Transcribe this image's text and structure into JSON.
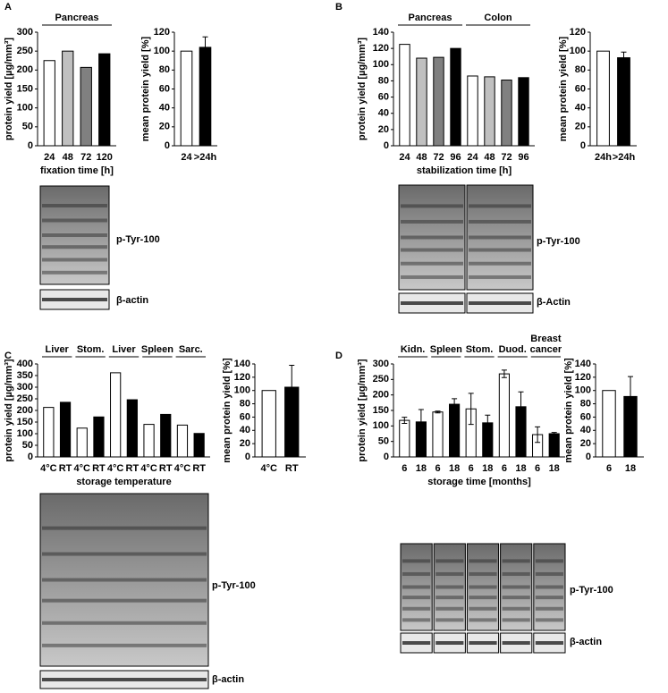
{
  "panels": [
    {
      "letter": "A",
      "blot_labels": [
        "p-Tyr-100",
        "β-actin"
      ]
    },
    {
      "letter": "B",
      "blot_labels": [
        "p-Tyr-100",
        "β-Actin"
      ]
    },
    {
      "letter": "C",
      "blot_labels": [
        "p-Tyr-100",
        "β-actin"
      ]
    },
    {
      "letter": "D",
      "blot_labels": [
        "p-Tyr-100",
        "β-actin"
      ]
    }
  ],
  "chart_data": [
    {
      "type": "bar",
      "ylabel": "protein yield [µg/mm³]",
      "xlabel": "fixation time [h]",
      "bar_colors": [
        "#ffffff",
        "#c0c0c0",
        "#808080",
        "#000000"
      ],
      "groups": [
        {
          "label": "Pancreas",
          "categories": [
            "24",
            "48",
            "72",
            "120"
          ],
          "values": [
            225,
            250,
            207,
            243
          ]
        }
      ],
      "ylim": [
        0,
        300
      ],
      "yticks": [
        0,
        50,
        100,
        150,
        200,
        250,
        300
      ]
    },
    {
      "type": "bar",
      "ylabel": "mean protein yield [%]",
      "bar_colors": [
        "#ffffff",
        "#000000"
      ],
      "groups": [
        {
          "categories": [
            "24",
            ">24h"
          ],
          "values": [
            100,
            104
          ],
          "errors": [
            null,
            11
          ]
        }
      ],
      "ylim": [
        0,
        120
      ],
      "yticks": [
        0,
        20,
        40,
        60,
        80,
        100,
        120
      ]
    },
    {
      "type": "bar",
      "ylabel": "protein yield [µg/mm³]",
      "xlabel": "stabilization time [h]",
      "bar_colors": [
        "#ffffff",
        "#c0c0c0",
        "#808080",
        "#000000"
      ],
      "groups": [
        {
          "label": "Pancreas",
          "categories": [
            "24",
            "48",
            "72",
            "96"
          ],
          "values": [
            125,
            108,
            109,
            120
          ]
        },
        {
          "label": "Colon",
          "categories": [
            "24",
            "48",
            "72",
            "96"
          ],
          "values": [
            86,
            85,
            81,
            84
          ]
        }
      ],
      "ylim": [
        0,
        140
      ],
      "yticks": [
        0,
        20,
        40,
        60,
        80,
        100,
        120,
        140
      ]
    },
    {
      "type": "bar",
      "ylabel": "mean protein yield [%]",
      "bar_colors": [
        "#ffffff",
        "#000000"
      ],
      "groups": [
        {
          "categories": [
            "24h",
            ">24h"
          ],
          "values": [
            100,
            93
          ],
          "errors": [
            null,
            6
          ]
        }
      ],
      "ylim": [
        0,
        120
      ],
      "yticks": [
        0,
        20,
        40,
        60,
        80,
        100,
        120
      ]
    },
    {
      "type": "bar",
      "ylabel": "protein yield [µg/mm³]",
      "xlabel": "storage temperature",
      "bar_colors": [
        "#ffffff",
        "#000000"
      ],
      "groups": [
        {
          "label": "Liver",
          "categories": [
            "4°C",
            "RT"
          ],
          "values": [
            213,
            235
          ]
        },
        {
          "label": "Stom.",
          "categories": [
            "4°C",
            "RT"
          ],
          "values": [
            124,
            172
          ]
        },
        {
          "label": "Liver",
          "categories": [
            "4°C",
            "RT"
          ],
          "values": [
            362,
            246
          ]
        },
        {
          "label": "Spleen",
          "categories": [
            "4°C",
            "RT"
          ],
          "values": [
            140,
            183
          ]
        },
        {
          "label": "Sarc.",
          "categories": [
            "4°C",
            "RT"
          ],
          "values": [
            137,
            101
          ]
        }
      ],
      "ylim": [
        0,
        400
      ],
      "yticks": [
        0,
        50,
        100,
        150,
        200,
        250,
        300,
        350,
        400
      ]
    },
    {
      "type": "bar",
      "ylabel": "mean protein yield [%]",
      "bar_colors": [
        "#ffffff",
        "#000000"
      ],
      "groups": [
        {
          "categories": [
            "4°C",
            "RT"
          ],
          "values": [
            100,
            105
          ],
          "errors": [
            null,
            33
          ]
        }
      ],
      "ylim": [
        0,
        140
      ],
      "yticks": [
        0,
        20,
        40,
        60,
        80,
        100,
        120,
        140
      ]
    },
    {
      "type": "bar",
      "ylabel": "protein yield [µg/mm³]",
      "xlabel": "storage time [months]",
      "bar_colors": [
        "#ffffff",
        "#000000"
      ],
      "groups": [
        {
          "label": "Kidn.",
          "categories": [
            "6",
            "18"
          ],
          "values": [
            118,
            113
          ],
          "errors": [
            10,
            40
          ]
        },
        {
          "label": "Spleen",
          "categories": [
            "6",
            "18"
          ],
          "values": [
            145,
            170
          ],
          "errors": [
            3,
            18
          ]
        },
        {
          "label": "Stom.",
          "categories": [
            "6",
            "18"
          ],
          "values": [
            155,
            110
          ],
          "errors": [
            50,
            25
          ]
        },
        {
          "label": "Duod.",
          "categories": [
            "6",
            "18"
          ],
          "values": [
            268,
            162
          ],
          "errors": [
            12,
            48
          ]
        },
        {
          "label": "Breast cancer",
          "categories": [
            "6",
            "18"
          ],
          "values": [
            72,
            75
          ],
          "errors": [
            25,
            4
          ]
        }
      ],
      "ylim": [
        0,
        300
      ],
      "yticks": [
        0,
        50,
        100,
        150,
        200,
        250,
        300
      ]
    },
    {
      "type": "bar",
      "ylabel": "mean protein yield [%]",
      "bar_colors": [
        "#ffffff",
        "#000000"
      ],
      "groups": [
        {
          "categories": [
            "6",
            "18"
          ],
          "values": [
            100,
            91
          ],
          "errors": [
            null,
            30
          ]
        }
      ],
      "ylim": [
        0,
        140
      ],
      "yticks": [
        0,
        20,
        40,
        60,
        80,
        100,
        120,
        140
      ]
    }
  ]
}
